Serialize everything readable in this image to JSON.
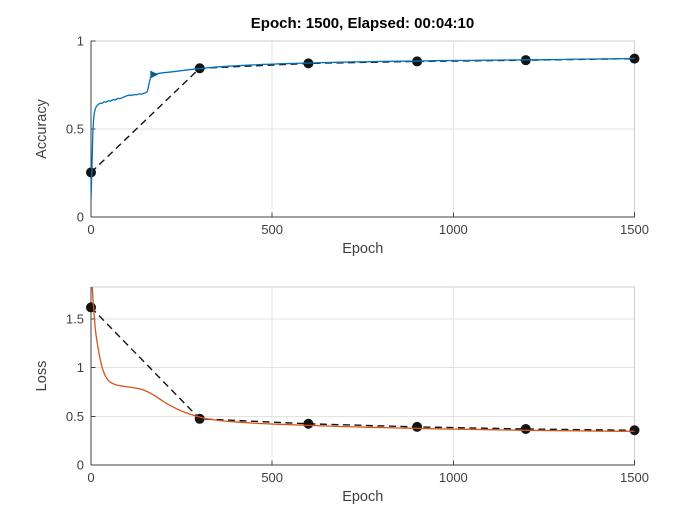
{
  "figure": {
    "title": "Epoch: 1500, Elapsed: 00:04:10",
    "background": "#ffffff"
  },
  "colors": {
    "training_accuracy": "#0072BD",
    "training_accuracy_marker": "#0B5D94",
    "training_loss": "#D95319",
    "validation": "#141414",
    "grid": "#e3e3e3",
    "box": "#cfcfcf",
    "axis": "#404040",
    "text": "#3f3f3f",
    "title_text": "#000000"
  },
  "chart_data": [
    {
      "id": "accuracy",
      "type": "line",
      "title": "",
      "xlabel": "Epoch",
      "ylabel": "Accuracy",
      "xlim": [
        0,
        1500
      ],
      "ylim": [
        0,
        1
      ],
      "xticks": [
        0,
        500,
        1000,
        1500
      ],
      "xtick_labels": [
        "0",
        "500",
        "1000",
        "1500"
      ],
      "yticks": [
        0,
        0.5,
        1
      ],
      "ytick_labels": [
        "0",
        "0.5",
        "1"
      ],
      "grid": true,
      "legend": "none",
      "series": [
        {
          "name": "validation-accuracy",
          "style": "dashed",
          "marker": "circle",
          "color_key": "validation",
          "points": [
            [
              0,
              0.253
            ],
            [
              300,
              0.845
            ],
            [
              600,
              0.873
            ],
            [
              900,
              0.884
            ],
            [
              1200,
              0.891
            ],
            [
              1500,
              0.9
            ]
          ]
        },
        {
          "name": "training-accuracy",
          "style": "solid",
          "marker": "none",
          "color_key": "training_accuracy",
          "arrow_marker": [
            172,
            0.81
          ],
          "points": [
            [
              0,
              0.095
            ],
            [
              3,
              0.32
            ],
            [
              5,
              0.47
            ],
            [
              7,
              0.55
            ],
            [
              9,
              0.59
            ],
            [
              12,
              0.615
            ],
            [
              15,
              0.628
            ],
            [
              18,
              0.636
            ],
            [
              22,
              0.642
            ],
            [
              26,
              0.647
            ],
            [
              30,
              0.645
            ],
            [
              34,
              0.651
            ],
            [
              38,
              0.655
            ],
            [
              42,
              0.652
            ],
            [
              46,
              0.658
            ],
            [
              50,
              0.661
            ],
            [
              54,
              0.658
            ],
            [
              58,
              0.664
            ],
            [
              62,
              0.667
            ],
            [
              66,
              0.664
            ],
            [
              70,
              0.67
            ],
            [
              75,
              0.674
            ],
            [
              80,
              0.672
            ],
            [
              85,
              0.677
            ],
            [
              90,
              0.681
            ],
            [
              95,
              0.685
            ],
            [
              100,
              0.69
            ],
            [
              104,
              0.693
            ],
            [
              108,
              0.69
            ],
            [
              112,
              0.694
            ],
            [
              116,
              0.692
            ],
            [
              120,
              0.696
            ],
            [
              125,
              0.694
            ],
            [
              130,
              0.698
            ],
            [
              135,
              0.7
            ],
            [
              140,
              0.698
            ],
            [
              145,
              0.702
            ],
            [
              150,
              0.705
            ],
            [
              155,
              0.712
            ],
            [
              158,
              0.732
            ],
            [
              161,
              0.765
            ],
            [
              164,
              0.79
            ],
            [
              168,
              0.803
            ],
            [
              172,
              0.81
            ],
            [
              177,
              0.813
            ],
            [
              183,
              0.815
            ],
            [
              190,
              0.817
            ],
            [
              200,
              0.82
            ],
            [
              212,
              0.822
            ],
            [
              224,
              0.825
            ],
            [
              236,
              0.828
            ],
            [
              248,
              0.831
            ],
            [
              260,
              0.834
            ],
            [
              272,
              0.837
            ],
            [
              284,
              0.84
            ],
            [
              300,
              0.843
            ],
            [
              320,
              0.847
            ],
            [
              340,
              0.851
            ],
            [
              360,
              0.854
            ],
            [
              380,
              0.857
            ],
            [
              400,
              0.859
            ],
            [
              425,
              0.862
            ],
            [
              450,
              0.864
            ],
            [
              475,
              0.867
            ],
            [
              500,
              0.869
            ],
            [
              530,
              0.871
            ],
            [
              560,
              0.873
            ],
            [
              600,
              0.875
            ],
            [
              640,
              0.877
            ],
            [
              680,
              0.879
            ],
            [
              720,
              0.881
            ],
            [
              760,
              0.882
            ],
            [
              800,
              0.884
            ],
            [
              850,
              0.885
            ],
            [
              900,
              0.886
            ],
            [
              950,
              0.888
            ],
            [
              1000,
              0.889
            ],
            [
              1050,
              0.89
            ],
            [
              1100,
              0.891
            ],
            [
              1150,
              0.892
            ],
            [
              1200,
              0.893
            ],
            [
              1250,
              0.894
            ],
            [
              1300,
              0.895
            ],
            [
              1350,
              0.897
            ],
            [
              1400,
              0.898
            ],
            [
              1450,
              0.899
            ],
            [
              1500,
              0.901
            ]
          ]
        }
      ]
    },
    {
      "id": "loss",
      "type": "line",
      "title": "",
      "xlabel": "Epoch",
      "ylabel": "Loss",
      "xlim": [
        0,
        1500
      ],
      "ylim": [
        0,
        1.83
      ],
      "xticks": [
        0,
        500,
        1000,
        1500
      ],
      "xtick_labels": [
        "0",
        "500",
        "1000",
        "1500"
      ],
      "yticks": [
        0,
        0.5,
        1,
        1.5
      ],
      "ytick_labels": [
        "0",
        "0.5",
        "1",
        "1.5"
      ],
      "grid": true,
      "legend": "none",
      "series": [
        {
          "name": "validation-loss",
          "style": "dashed",
          "marker": "circle",
          "color_key": "validation",
          "points": [
            [
              0,
              1.62
            ],
            [
              300,
              0.475
            ],
            [
              600,
              0.424
            ],
            [
              900,
              0.392
            ],
            [
              1200,
              0.37
            ],
            [
              1500,
              0.357
            ]
          ]
        },
        {
          "name": "training-loss",
          "style": "solid",
          "marker": "none",
          "color_key": "training_loss",
          "points": [
            [
              0,
              2.05
            ],
            [
              3,
              1.86
            ],
            [
              6,
              1.67
            ],
            [
              9,
              1.52
            ],
            [
              12,
              1.4
            ],
            [
              15,
              1.31
            ],
            [
              19,
              1.21
            ],
            [
              23,
              1.13
            ],
            [
              27,
              1.06
            ],
            [
              31,
              1.0
            ],
            [
              35,
              0.955
            ],
            [
              39,
              0.92
            ],
            [
              43,
              0.893
            ],
            [
              47,
              0.872
            ],
            [
              52,
              0.855
            ],
            [
              57,
              0.843
            ],
            [
              62,
              0.834
            ],
            [
              68,
              0.826
            ],
            [
              74,
              0.82
            ],
            [
              80,
              0.815
            ],
            [
              88,
              0.81
            ],
            [
              96,
              0.806
            ],
            [
              104,
              0.802
            ],
            [
              112,
              0.798
            ],
            [
              120,
              0.793
            ],
            [
              128,
              0.788
            ],
            [
              136,
              0.781
            ],
            [
              144,
              0.772
            ],
            [
              152,
              0.76
            ],
            [
              160,
              0.746
            ],
            [
              168,
              0.73
            ],
            [
              176,
              0.712
            ],
            [
              184,
              0.692
            ],
            [
              192,
              0.672
            ],
            [
              202,
              0.648
            ],
            [
              212,
              0.625
            ],
            [
              224,
              0.6
            ],
            [
              236,
              0.578
            ],
            [
              248,
              0.558
            ],
            [
              260,
              0.54
            ],
            [
              272,
              0.524
            ],
            [
              284,
              0.51
            ],
            [
              300,
              0.492
            ],
            [
              316,
              0.478
            ],
            [
              332,
              0.468
            ],
            [
              350,
              0.459
            ],
            [
              370,
              0.451
            ],
            [
              390,
              0.445
            ],
            [
              410,
              0.44
            ],
            [
              435,
              0.434
            ],
            [
              460,
              0.428
            ],
            [
              490,
              0.423
            ],
            [
              520,
              0.418
            ],
            [
              550,
              0.414
            ],
            [
              580,
              0.41
            ],
            [
              610,
              0.406
            ],
            [
              650,
              0.401
            ],
            [
              690,
              0.396
            ],
            [
              730,
              0.392
            ],
            [
              770,
              0.388
            ],
            [
              810,
              0.384
            ],
            [
              850,
              0.38
            ],
            [
              900,
              0.376
            ],
            [
              950,
              0.372
            ],
            [
              1000,
              0.369
            ],
            [
              1050,
              0.366
            ],
            [
              1100,
              0.363
            ],
            [
              1150,
              0.36
            ],
            [
              1200,
              0.357
            ],
            [
              1250,
              0.355
            ],
            [
              1300,
              0.353
            ],
            [
              1350,
              0.351
            ],
            [
              1400,
              0.349
            ],
            [
              1450,
              0.347
            ],
            [
              1500,
              0.345
            ]
          ]
        }
      ]
    }
  ]
}
